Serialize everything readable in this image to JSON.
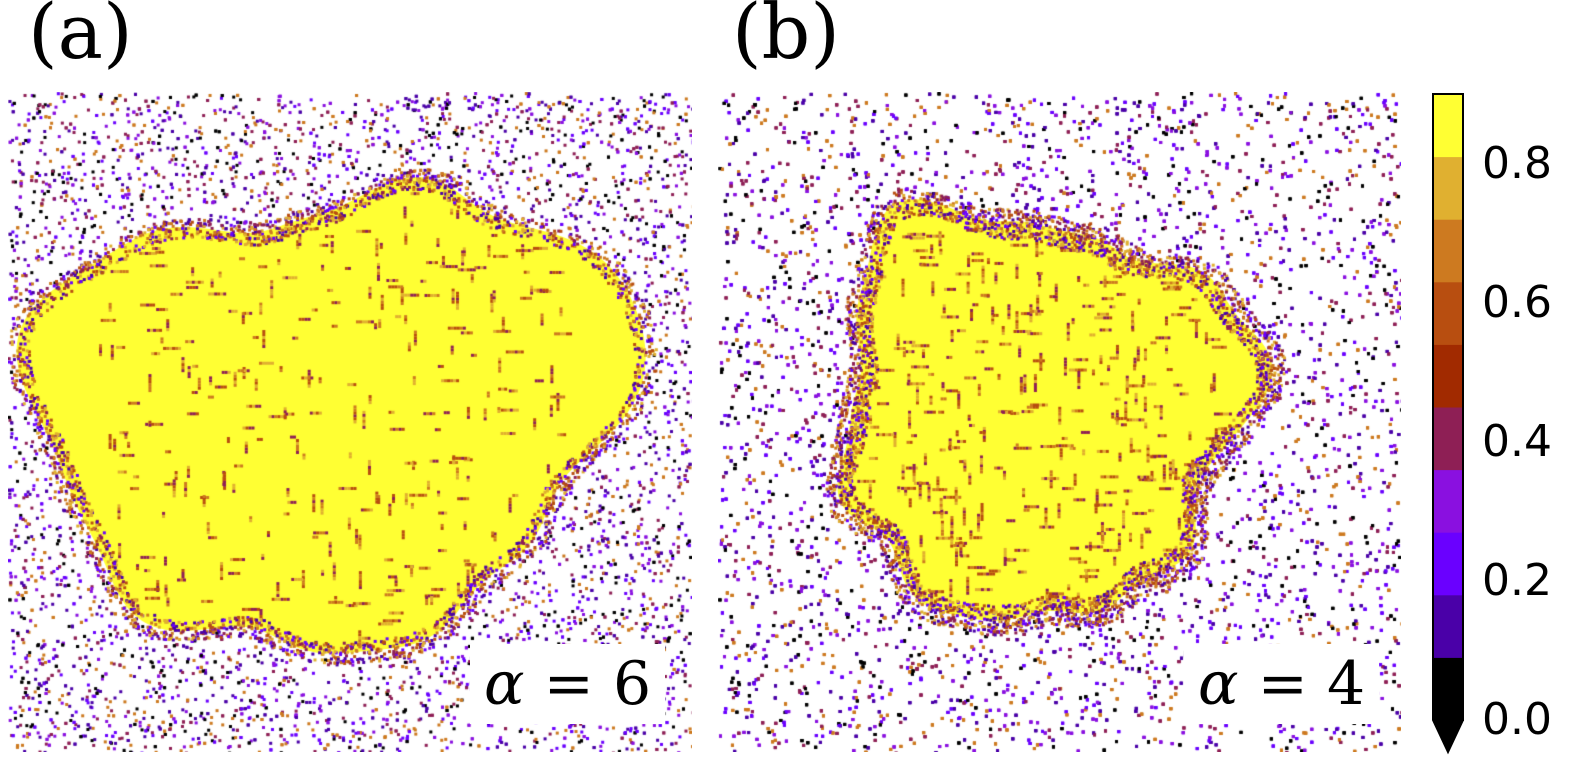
{
  "panels": [
    {
      "label": "(a)",
      "alpha_symbol": "α",
      "alpha_text": "= 6",
      "alpha_value": 6
    },
    {
      "label": "(b)",
      "alpha_symbol": "α",
      "alpha_text": "= 4",
      "alpha_value": 4
    }
  ],
  "colorbar": {
    "tick_labels": [
      "0.8",
      "0.6",
      "0.4",
      "0.2",
      "0.0"
    ],
    "tick_values": [
      0.8,
      0.6,
      0.4,
      0.2,
      0.0
    ],
    "range": [
      0.0,
      0.9
    ],
    "extend": "min",
    "colors": [
      "#000000",
      "#4a00a8",
      "#6a00ff",
      "#8a10e0",
      "#8e1f55",
      "#a12a00",
      "#b84e10",
      "#cd7a20",
      "#e0b030",
      "#ffff33"
    ]
  }
}
